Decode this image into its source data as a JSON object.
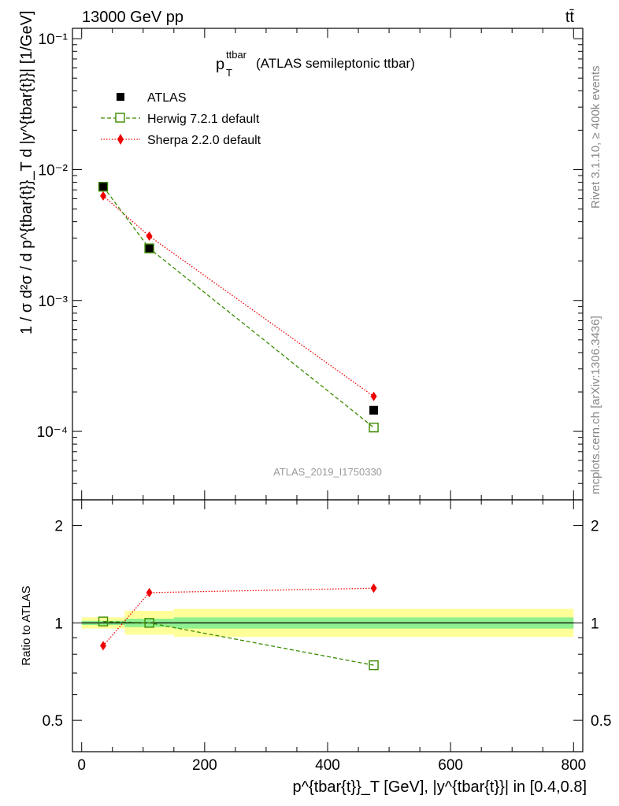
{
  "header": {
    "left": "13000 GeV pp",
    "right": "tt̄"
  },
  "side": {
    "rivet": "Rivet 3.1.10, ≥ 400k events",
    "mcplots": "mcplots.cern.ch [arXiv:1306.3436]"
  },
  "watermark": "ATLAS_2019_I1750330",
  "colors": {
    "data": "#000000",
    "herwig": "#3a8a00",
    "sherpa": "#ee0000",
    "band_inner": "#8ff08f",
    "band_outer": "#ffff99"
  },
  "chart_data": [
    {
      "type": "scatter",
      "title": "p_T^ttbar (ATLAS semileptonic ttbar)",
      "title_parts": {
        "main": "p",
        "sup": "ttbar",
        "sub": "T",
        "rest": "(ATLAS semileptonic ttbar)"
      },
      "ylabel": "1 / σ d²σ / d p^{tbar{t}}_T d |y^{tbar{t}}| [1/GeV]",
      "yscale": "log",
      "ylim": [
        3e-05,
        0.12
      ],
      "xlim": [
        -15,
        815
      ],
      "ytick_labels": [
        "10⁻⁴",
        "10⁻³",
        "10⁻²",
        "10⁻¹"
      ],
      "ytick_values": [
        0.0001,
        0.001,
        0.01,
        0.1
      ],
      "legend_placement": "top-left",
      "series": [
        {
          "name": "ATLAS",
          "marker": "filled-square",
          "line": "none",
          "x": [
            35,
            110,
            475
          ],
          "y": [
            0.0074,
            0.0025,
            0.000145
          ]
        },
        {
          "name": "Herwig 7.2.1 default",
          "marker": "open-square",
          "line": "dashed",
          "x": [
            35,
            110,
            475
          ],
          "y": [
            0.0074,
            0.0025,
            0.000107
          ]
        },
        {
          "name": "Sherpa 2.2.0 default",
          "marker": "diamond",
          "line": "dotted",
          "x": [
            35,
            110,
            475
          ],
          "y": [
            0.0063,
            0.0031,
            0.000185
          ]
        }
      ]
    },
    {
      "type": "scatter",
      "ylabel": "Ratio to ATLAS",
      "xlabel": "p^{tbar{t}}_T [GeV], |y^{tbar{t}}| in [0.4,0.8]",
      "yscale": "log",
      "ylim": [
        0.4,
        2.4
      ],
      "xlim": [
        -15,
        815
      ],
      "xticks": [
        "0",
        "200",
        "400",
        "600",
        "800"
      ],
      "xtick_values": [
        0,
        200,
        400,
        600,
        800
      ],
      "ytick_labels": [
        "0.5",
        "1",
        "2"
      ],
      "ytick_values": [
        0.5,
        1,
        2
      ],
      "uncertainty_bands": [
        {
          "xmin": 0,
          "xmax": 70,
          "inner": [
            0.985,
            1.015
          ],
          "outer": [
            0.96,
            1.04
          ]
        },
        {
          "xmin": 70,
          "xmax": 150,
          "inner": [
            0.97,
            1.03
          ],
          "outer": [
            0.92,
            1.09
          ]
        },
        {
          "xmin": 150,
          "xmax": 800,
          "inner": [
            0.96,
            1.04
          ],
          "outer": [
            0.905,
            1.105
          ]
        }
      ],
      "series": [
        {
          "name": "Herwig 7.2.1 default",
          "x": [
            35,
            110,
            475
          ],
          "y": [
            1.01,
            1.0,
            0.74
          ]
        },
        {
          "name": "Sherpa 2.2.0 default",
          "x": [
            35,
            110,
            475
          ],
          "y": [
            0.85,
            1.24,
            1.28
          ]
        }
      ]
    }
  ]
}
